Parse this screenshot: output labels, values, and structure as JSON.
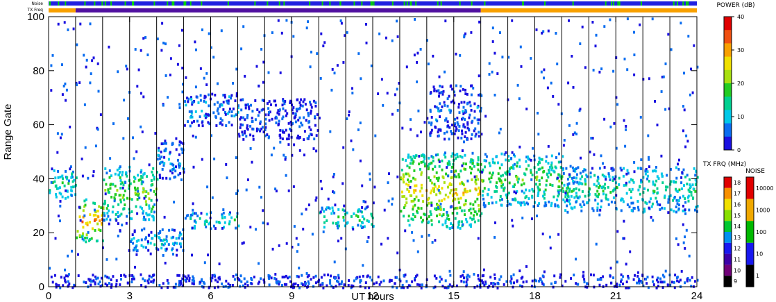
{
  "chart_data": {
    "type": "heatmap",
    "title": "",
    "xlabel": "UT hours",
    "ylabel": "Range Gate",
    "xlim": [
      0,
      24
    ],
    "ylim": [
      0,
      100
    ],
    "x_ticks": [
      "0",
      "3",
      "6",
      "9",
      "12",
      "15",
      "18",
      "21",
      "24"
    ],
    "y_ticks": [
      "0",
      "20",
      "40",
      "60",
      "80",
      "100"
    ],
    "vertical_marker_hours": [
      1,
      2,
      3,
      4,
      5,
      6,
      7,
      8,
      9,
      10,
      11,
      12,
      13,
      14,
      15,
      16,
      17,
      18,
      19,
      20,
      21,
      22,
      23,
      24
    ],
    "echo_bands": [
      {
        "from_hour": 0.0,
        "to_hour": 1.0,
        "gate_lo": 32,
        "gate_hi": 45,
        "power": 14
      },
      {
        "from_hour": 1.0,
        "to_hour": 2.0,
        "gate_lo": 17,
        "gate_hi": 33,
        "power": 30
      },
      {
        "from_hour": 2.0,
        "to_hour": 4.0,
        "gate_lo": 25,
        "gate_hi": 45,
        "power": 20
      },
      {
        "from_hour": 3.0,
        "to_hour": 5.0,
        "gate_lo": 12,
        "gate_hi": 22,
        "power": 10
      },
      {
        "from_hour": 4.0,
        "to_hour": 5.0,
        "gate_lo": 40,
        "gate_hi": 55,
        "power": 8
      },
      {
        "from_hour": 5.0,
        "to_hour": 7.0,
        "gate_lo": 22,
        "gate_hi": 28,
        "power": 14
      },
      {
        "from_hour": 5.0,
        "to_hour": 7.0,
        "gate_lo": 60,
        "gate_hi": 72,
        "power": 8
      },
      {
        "from_hour": 7.0,
        "to_hour": 10.0,
        "gate_lo": 55,
        "gate_hi": 70,
        "power": 4
      },
      {
        "from_hour": 10.0,
        "to_hour": 12.0,
        "gate_lo": 22,
        "gate_hi": 30,
        "power": 16
      },
      {
        "from_hour": 13.0,
        "to_hour": 16.0,
        "gate_lo": 22,
        "gate_hi": 50,
        "power": 26
      },
      {
        "from_hour": 14.0,
        "to_hour": 16.0,
        "gate_lo": 55,
        "gate_hi": 75,
        "power": 5
      },
      {
        "from_hour": 16.0,
        "to_hour": 19.0,
        "gate_lo": 30,
        "gate_hi": 50,
        "power": 18
      },
      {
        "from_hour": 19.0,
        "to_hour": 24.0,
        "gate_lo": 28,
        "gate_hi": 45,
        "power": 14
      },
      {
        "from_hour": 0.0,
        "to_hour": 24.0,
        "gate_lo": 0,
        "gate_hi": 5,
        "power": 4
      }
    ],
    "legends": {
      "power": {
        "title": "POWER (dB)",
        "ticks": [
          "40",
          "30",
          "20",
          "10",
          "0"
        ]
      },
      "tx_freq": {
        "title": "TX FRQ (MHz)",
        "labels": [
          "18",
          "17",
          "16",
          "15",
          "14",
          "13",
          "12",
          "11",
          "10",
          "9"
        ]
      },
      "noise": {
        "title": "NOISE",
        "labels": [
          "10000",
          "1000",
          "100",
          "10",
          "1"
        ]
      }
    },
    "status_bars": {
      "noise_label": "Noise",
      "txfreq_label": "TX Freq"
    }
  },
  "colors": {
    "power_scale": [
      "#1a10e0",
      "#0a6df0",
      "#00c8e8",
      "#00d090",
      "#22cc22",
      "#a8e010",
      "#f0e000",
      "#f8a000",
      "#f05010",
      "#e00000"
    ],
    "txfreq_scale": [
      "#000000",
      "#700078",
      "#3c00a8",
      "#1818f0",
      "#0090f0",
      "#00c830",
      "#88e000",
      "#f0e000",
      "#f89000",
      "#e00000"
    ],
    "noise_scale": [
      "#000000",
      "#1818f0",
      "#00b800",
      "#f0a800",
      "#e00000"
    ],
    "noise_bar_main": "#2020e0",
    "noise_bar_accent": "#00d000",
    "txfreq_orange": "#f8a000",
    "txfreq_purple": "#5010a0"
  }
}
